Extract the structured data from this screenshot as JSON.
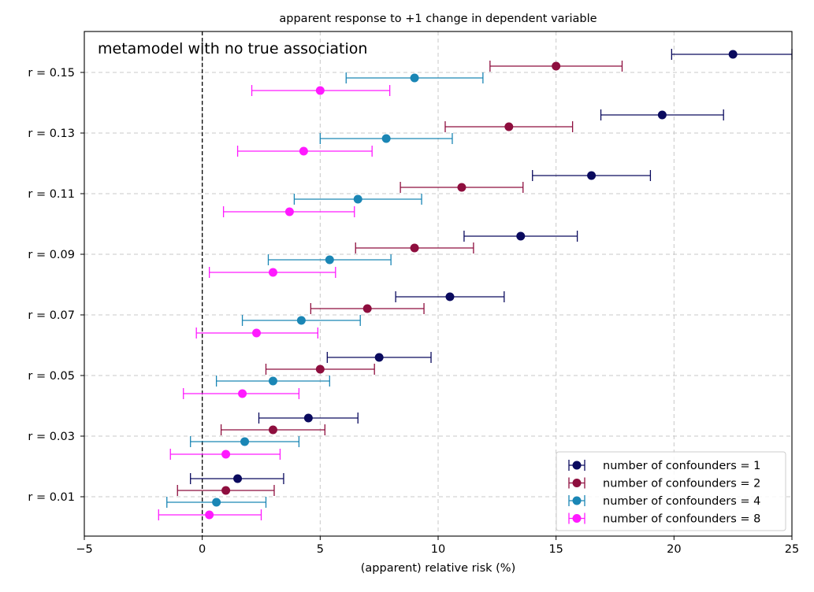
{
  "chart_data": {
    "type": "errorbar",
    "title": "apparent response to +1 change in dependent variable",
    "xlabel": "(apparent) relative risk (%)",
    "ylabel": "",
    "xlim": [
      -5,
      25
    ],
    "xticks": [
      -5,
      0,
      5,
      10,
      15,
      20,
      25
    ],
    "xtick_labels": [
      "−5",
      "0",
      "5",
      "10",
      "15",
      "20",
      "25"
    ],
    "grid": true,
    "reference_line_x": 0,
    "annotation": "metamodel with no true association",
    "legend_position": "bottom-right",
    "categories": [
      "r = 0.01",
      "r = 0.03",
      "r = 0.05",
      "r = 0.07",
      "r = 0.09",
      "r = 0.11",
      "r = 0.13",
      "r = 0.15"
    ],
    "series": [
      {
        "name": "number of confounders = 1",
        "color": "#0a0a5e",
        "values": [
          1.5,
          4.5,
          7.5,
          10.5,
          13.5,
          16.5,
          19.5,
          22.5
        ],
        "lower": [
          -0.5,
          2.4,
          5.3,
          8.2,
          11.1,
          14.0,
          16.9,
          19.9
        ],
        "upper": [
          3.45,
          6.6,
          9.7,
          12.8,
          15.9,
          19.0,
          22.1,
          25.0
        ]
      },
      {
        "name": "number of confounders = 2",
        "color": "#8e0e3e",
        "values": [
          1.0,
          3.0,
          5.0,
          7.0,
          9.0,
          11.0,
          13.0,
          15.0
        ],
        "lower": [
          -1.05,
          0.8,
          2.7,
          4.6,
          6.5,
          8.4,
          10.3,
          12.2
        ],
        "upper": [
          3.05,
          5.2,
          7.3,
          9.4,
          11.5,
          13.6,
          15.7,
          17.8
        ]
      },
      {
        "name": "number of confounders = 4",
        "color": "#1a86b5",
        "values": [
          0.6,
          1.8,
          3.0,
          4.2,
          5.4,
          6.6,
          7.8,
          9.0
        ],
        "lower": [
          -1.5,
          -0.5,
          0.6,
          1.7,
          2.8,
          3.9,
          5.0,
          6.1
        ],
        "upper": [
          2.7,
          4.1,
          5.4,
          6.7,
          8.0,
          9.3,
          10.6,
          11.9
        ]
      },
      {
        "name": "number of confounders = 8",
        "color": "#ff1aff",
        "values": [
          0.3,
          1.0,
          1.7,
          2.3,
          3.0,
          3.7,
          4.3,
          5.0
        ],
        "lower": [
          -1.85,
          -1.35,
          -0.8,
          -0.25,
          0.3,
          0.9,
          1.5,
          2.1
        ],
        "upper": [
          2.5,
          3.3,
          4.1,
          4.9,
          5.65,
          6.45,
          7.2,
          7.95
        ]
      }
    ]
  }
}
